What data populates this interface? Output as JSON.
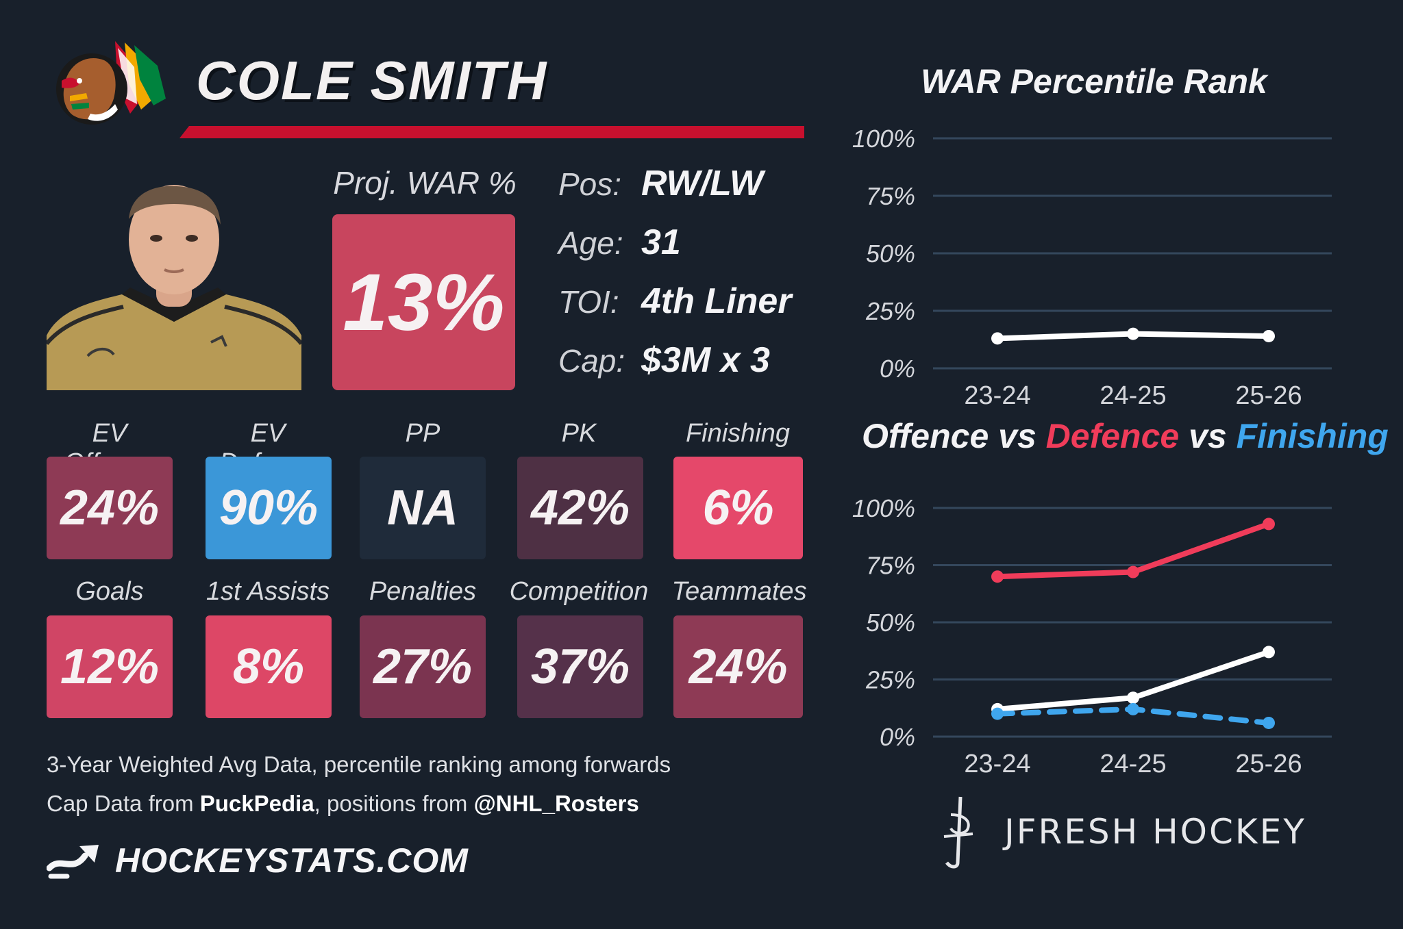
{
  "player": {
    "name": "COLE SMITH"
  },
  "proj_war": {
    "label": "Proj. WAR %",
    "value": "13%"
  },
  "info": [
    {
      "label": "Pos:",
      "value": "RW/LW"
    },
    {
      "label": "Age:",
      "value": "31"
    },
    {
      "label": "TOI:",
      "value": "4th Liner"
    },
    {
      "label": "Cap:",
      "value": "$3M x 3"
    }
  ],
  "tiles": [
    {
      "label": "EV Offence",
      "value": "24%",
      "color": "#8e3a55"
    },
    {
      "label": "EV Defence",
      "value": "90%",
      "color": "#3b97d8"
    },
    {
      "label": "PP",
      "value": "NA",
      "color": "#1f2b3a"
    },
    {
      "label": "PK",
      "value": "42%",
      "color": "#4e3044"
    },
    {
      "label": "Finishing",
      "value": "6%",
      "color": "#e5486a"
    },
    {
      "label": "Goals",
      "value": "12%",
      "color": "#d04565"
    },
    {
      "label": "1st Assists",
      "value": "8%",
      "color": "#dd4766"
    },
    {
      "label": "Penalties",
      "value": "27%",
      "color": "#7b3450"
    },
    {
      "label": "Competition",
      "value": "37%",
      "color": "#55314a"
    },
    {
      "label": "Teammates",
      "value": "24%",
      "color": "#8e3a55"
    }
  ],
  "footer": {
    "line1": "3-Year Weighted Avg Data, percentile ranking among forwards",
    "line2_a": "Cap Data from ",
    "line2_b": "PuckPedia",
    "line2_c": ", positions from ",
    "line2_d": "@NHL_Rosters",
    "brand": "HOCKEYSTATS.COM",
    "jfresh": "JFRESH HOCKEY"
  },
  "colors": {
    "offence": "#ffffff",
    "defence": "#f03c5a",
    "finishing": "#3fa6ee",
    "grid": "#34475c"
  },
  "chart_data": [
    {
      "type": "line",
      "title": "WAR Percentile Rank",
      "categories": [
        "23-24",
        "24-25",
        "25-26"
      ],
      "yticks": [
        "0%",
        "25%",
        "50%",
        "75%",
        "100%"
      ],
      "ylim": [
        0,
        100
      ],
      "series": [
        {
          "values": [
            13,
            15,
            14
          ],
          "color": "#ffffff",
          "dashed": false
        }
      ]
    },
    {
      "type": "line",
      "title_parts": [
        "Offence",
        " vs ",
        "Defence",
        " vs ",
        "Finishing"
      ],
      "categories": [
        "23-24",
        "24-25",
        "25-26"
      ],
      "yticks": [
        "0%",
        "25%",
        "50%",
        "75%",
        "100%"
      ],
      "ylim": [
        0,
        100
      ],
      "series": [
        {
          "name": "Defence",
          "values": [
            70,
            72,
            93
          ],
          "color": "#f03c5a",
          "dashed": false
        },
        {
          "name": "Offence",
          "values": [
            12,
            17,
            37
          ],
          "color": "#ffffff",
          "dashed": false
        },
        {
          "name": "Finishing",
          "values": [
            10,
            12,
            6
          ],
          "color": "#3fa6ee",
          "dashed": true
        }
      ]
    }
  ]
}
